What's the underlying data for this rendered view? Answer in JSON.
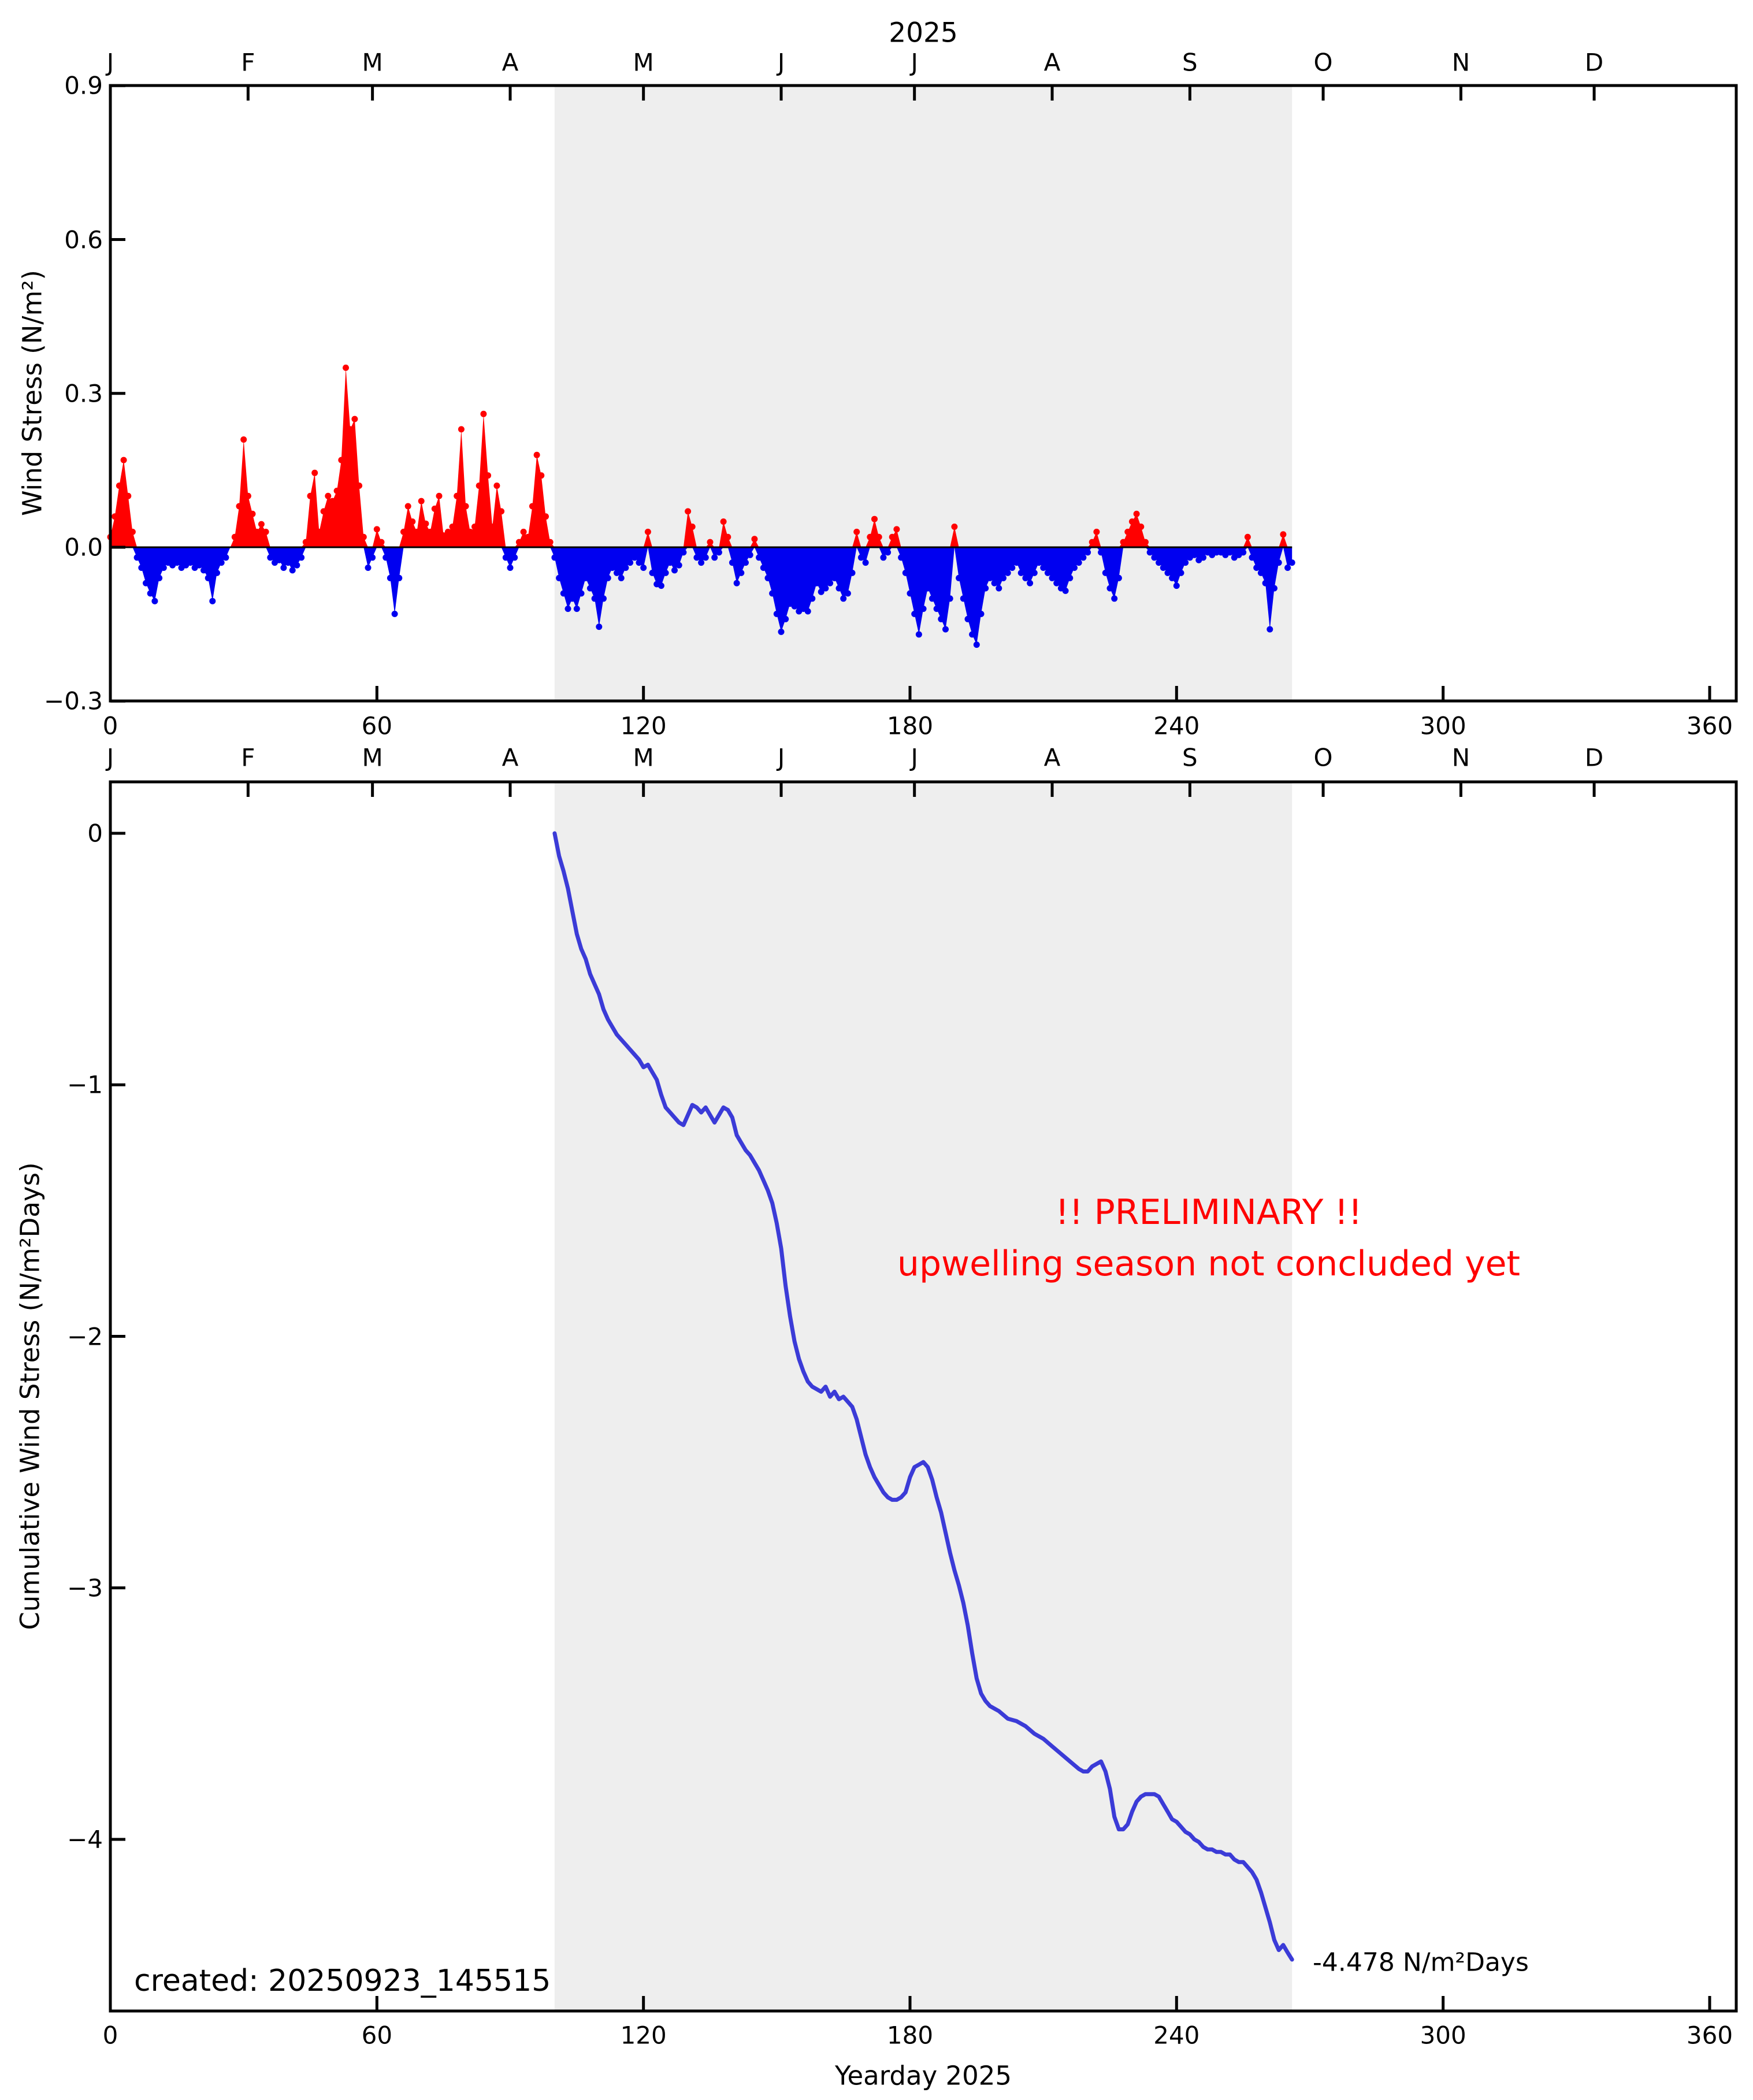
{
  "title": "2025",
  "xlabel": "Yearday 2025",
  "x_ticks": [
    0,
    60,
    120,
    180,
    240,
    300,
    360
  ],
  "x_tick_labels": [
    "0",
    "60",
    "120",
    "180",
    "240",
    "300",
    "360"
  ],
  "month_labels": [
    "J",
    "F",
    "M",
    "A",
    "M",
    "J",
    "J",
    "A",
    "S",
    "O",
    "N",
    "D"
  ],
  "month_start_days": [
    0,
    31,
    59,
    90,
    120,
    151,
    181,
    212,
    243,
    273,
    304,
    334
  ],
  "panel1": {
    "ylabel": "Wind Stress (N/m²)",
    "y_ticks": [
      0.9,
      0.6,
      0.3,
      0.0,
      -0.3
    ],
    "y_tick_labels": [
      "0.9",
      "0.6",
      "0.3",
      "0.0",
      "−0.3"
    ]
  },
  "panel2": {
    "ylabel": "Cumulative Wind Stress (N/m²Days)",
    "y_ticks": [
      0,
      -1,
      -2,
      -3,
      -4
    ],
    "y_tick_labels": [
      "0",
      "−1",
      "−2",
      "−3",
      "−4"
    ]
  },
  "annotations": {
    "preliminary_line1": "!! PRELIMINARY !!",
    "preliminary_line2": "upwelling season not concluded yet",
    "created": "created: 20250923_145515",
    "final_value": "-4.478 N/m²Days"
  },
  "colors": {
    "positive_fill": "#ff0000",
    "negative_fill": "#0000f0",
    "cumulative_line": "#3b3bd7",
    "shaded_region": "#eeeeee",
    "axis": "#000000",
    "annotation_red": "#ff0000"
  },
  "shaded_region_days": [
    100,
    266
  ],
  "chart_data": [
    {
      "type": "area",
      "panel": "top",
      "title": "2025",
      "ylabel": "Wind Stress (N/m²)",
      "xlim": [
        0,
        366
      ],
      "ylim": [
        -0.3,
        0.9
      ],
      "x_start_day": 0,
      "x_step_days": 1,
      "positive_color": "#ff0000",
      "negative_color": "#0000f0",
      "shaded_region": [
        100,
        266
      ],
      "values": [
        0.02,
        0.06,
        0.12,
        0.17,
        0.1,
        0.03,
        -0.02,
        -0.04,
        -0.07,
        -0.09,
        -0.105,
        -0.06,
        -0.04,
        -0.03,
        -0.035,
        -0.03,
        -0.04,
        -0.035,
        -0.03,
        -0.04,
        -0.035,
        -0.045,
        -0.06,
        -0.105,
        -0.05,
        -0.03,
        -0.02,
        0.0,
        0.02,
        0.08,
        0.21,
        0.1,
        0.065,
        0.03,
        0.045,
        0.03,
        -0.02,
        -0.03,
        -0.025,
        -0.04,
        -0.03,
        -0.045,
        -0.035,
        -0.02,
        0.01,
        0.1,
        0.145,
        0.03,
        0.07,
        0.1,
        0.09,
        0.11,
        0.17,
        0.35,
        0.23,
        0.25,
        0.12,
        0.02,
        -0.04,
        -0.02,
        0.035,
        0.01,
        -0.02,
        -0.06,
        -0.13,
        -0.06,
        0.03,
        0.08,
        0.05,
        0.03,
        0.09,
        0.046,
        0.03,
        0.075,
        0.1,
        0.023,
        0.03,
        0.04,
        0.1,
        0.23,
        0.08,
        0.03,
        0.04,
        0.12,
        0.26,
        0.14,
        0.04,
        0.12,
        0.07,
        -0.02,
        -0.04,
        -0.02,
        0.01,
        0.03,
        0.02,
        0.08,
        0.18,
        0.14,
        0.06,
        0.01,
        -0.02,
        -0.06,
        -0.09,
        -0.12,
        -0.1,
        -0.12,
        -0.09,
        -0.06,
        -0.08,
        -0.1,
        -0.155,
        -0.1,
        -0.06,
        -0.04,
        -0.05,
        -0.06,
        -0.04,
        -0.03,
        -0.02,
        -0.03,
        -0.04,
        0.03,
        -0.05,
        -0.072,
        -0.075,
        -0.05,
        -0.03,
        -0.045,
        -0.035,
        -0.01,
        0.07,
        0.04,
        -0.02,
        -0.03,
        -0.02,
        0.01,
        -0.02,
        -0.01,
        0.05,
        0.02,
        -0.03,
        -0.07,
        -0.05,
        -0.03,
        -0.015,
        0.016,
        -0.02,
        -0.04,
        -0.06,
        -0.09,
        -0.13,
        -0.165,
        -0.14,
        -0.11,
        -0.115,
        -0.125,
        -0.12,
        -0.125,
        -0.1,
        -0.07,
        -0.087,
        -0.08,
        -0.07,
        -0.06,
        -0.08,
        -0.1,
        -0.09,
        -0.05,
        0.03,
        -0.02,
        -0.03,
        0.02,
        0.055,
        0.02,
        -0.02,
        -0.01,
        0.02,
        0.035,
        -0.02,
        -0.05,
        -0.09,
        -0.13,
        -0.17,
        -0.12,
        -0.08,
        -0.1,
        -0.12,
        -0.14,
        -0.16,
        -0.1,
        0.04,
        -0.06,
        -0.1,
        -0.14,
        -0.17,
        -0.19,
        -0.13,
        -0.08,
        -0.06,
        -0.07,
        -0.08,
        -0.06,
        -0.05,
        -0.04,
        -0.03,
        -0.05,
        -0.06,
        -0.07,
        -0.05,
        -0.03,
        -0.04,
        -0.05,
        -0.06,
        -0.07,
        -0.08,
        -0.085,
        -0.06,
        -0.04,
        -0.03,
        -0.02,
        -0.01,
        0.01,
        0.03,
        -0.01,
        -0.05,
        -0.08,
        -0.1,
        -0.06,
        0.01,
        0.03,
        0.05,
        0.065,
        0.04,
        0.01,
        -0.01,
        -0.02,
        -0.03,
        -0.04,
        -0.05,
        -0.06,
        -0.075,
        -0.05,
        -0.03,
        -0.02,
        -0.015,
        -0.025,
        -0.02,
        -0.01,
        -0.015,
        -0.01,
        -0.01,
        -0.015,
        -0.01,
        -0.02,
        -0.015,
        -0.01,
        0.02,
        -0.02,
        -0.04,
        -0.05,
        -0.07,
        -0.16,
        -0.08,
        -0.03,
        0.025,
        -0.04,
        -0.03
      ]
    },
    {
      "type": "line",
      "panel": "bottom",
      "ylabel": "Cumulative Wind Stress (N/m²Days)",
      "xlabel": "Yearday 2025",
      "xlim": [
        0,
        366
      ],
      "ylim": [
        -4.683,
        0.204
      ],
      "line_color": "#3b3bd7",
      "shaded_region": [
        100,
        266
      ],
      "end_value": -4.478,
      "end_label": "-4.478 N/m²Days",
      "points": [
        [
          100,
          0.0
        ],
        [
          101,
          -0.09
        ],
        [
          102,
          -0.15
        ],
        [
          103,
          -0.22
        ],
        [
          104,
          -0.31
        ],
        [
          105,
          -0.4
        ],
        [
          106,
          -0.46
        ],
        [
          107,
          -0.5
        ],
        [
          108,
          -0.56
        ],
        [
          109,
          -0.6
        ],
        [
          110,
          -0.64
        ],
        [
          111,
          -0.7
        ],
        [
          112,
          -0.74
        ],
        [
          113,
          -0.77
        ],
        [
          114,
          -0.8
        ],
        [
          115,
          -0.82
        ],
        [
          116,
          -0.84
        ],
        [
          117,
          -0.86
        ],
        [
          118,
          -0.88
        ],
        [
          119,
          -0.9
        ],
        [
          120,
          -0.93
        ],
        [
          121,
          -0.92
        ],
        [
          122,
          -0.95
        ],
        [
          123,
          -0.98
        ],
        [
          124,
          -1.04
        ],
        [
          125,
          -1.09
        ],
        [
          126,
          -1.11
        ],
        [
          127,
          -1.13
        ],
        [
          128,
          -1.15
        ],
        [
          129,
          -1.16
        ],
        [
          130,
          -1.12
        ],
        [
          131,
          -1.08
        ],
        [
          132,
          -1.09
        ],
        [
          133,
          -1.11
        ],
        [
          134,
          -1.09
        ],
        [
          135,
          -1.12
        ],
        [
          136,
          -1.15
        ],
        [
          137,
          -1.12
        ],
        [
          138,
          -1.09
        ],
        [
          139,
          -1.1
        ],
        [
          140,
          -1.13
        ],
        [
          141,
          -1.2
        ],
        [
          142,
          -1.23
        ],
        [
          143,
          -1.26
        ],
        [
          144,
          -1.28
        ],
        [
          145,
          -1.31
        ],
        [
          146,
          -1.34
        ],
        [
          147,
          -1.38
        ],
        [
          148,
          -1.42
        ],
        [
          149,
          -1.47
        ],
        [
          150,
          -1.55
        ],
        [
          151,
          -1.65
        ],
        [
          152,
          -1.8
        ],
        [
          153,
          -1.92
        ],
        [
          154,
          -2.02
        ],
        [
          155,
          -2.09
        ],
        [
          156,
          -2.14
        ],
        [
          157,
          -2.18
        ],
        [
          158,
          -2.2
        ],
        [
          159,
          -2.21
        ],
        [
          160,
          -2.22
        ],
        [
          161,
          -2.2
        ],
        [
          162,
          -2.24
        ],
        [
          163,
          -2.22
        ],
        [
          164,
          -2.25
        ],
        [
          165,
          -2.24
        ],
        [
          166,
          -2.26
        ],
        [
          167,
          -2.28
        ],
        [
          168,
          -2.33
        ],
        [
          169,
          -2.4
        ],
        [
          170,
          -2.47
        ],
        [
          171,
          -2.52
        ],
        [
          172,
          -2.56
        ],
        [
          173,
          -2.59
        ],
        [
          174,
          -2.62
        ],
        [
          175,
          -2.64
        ],
        [
          176,
          -2.65
        ],
        [
          177,
          -2.65
        ],
        [
          178,
          -2.64
        ],
        [
          179,
          -2.62
        ],
        [
          180,
          -2.56
        ],
        [
          181,
          -2.52
        ],
        [
          182,
          -2.51
        ],
        [
          183,
          -2.5
        ],
        [
          184,
          -2.52
        ],
        [
          185,
          -2.57
        ],
        [
          186,
          -2.64
        ],
        [
          187,
          -2.7
        ],
        [
          188,
          -2.78
        ],
        [
          189,
          -2.86
        ],
        [
          190,
          -2.93
        ],
        [
          191,
          -2.99
        ],
        [
          192,
          -3.06
        ],
        [
          193,
          -3.15
        ],
        [
          194,
          -3.26
        ],
        [
          195,
          -3.36
        ],
        [
          196,
          -3.42
        ],
        [
          197,
          -3.45
        ],
        [
          198,
          -3.47
        ],
        [
          199,
          -3.48
        ],
        [
          200,
          -3.49
        ],
        [
          202,
          -3.52
        ],
        [
          204,
          -3.53
        ],
        [
          206,
          -3.55
        ],
        [
          208,
          -3.58
        ],
        [
          210,
          -3.6
        ],
        [
          212,
          -3.63
        ],
        [
          214,
          -3.66
        ],
        [
          216,
          -3.69
        ],
        [
          218,
          -3.72
        ],
        [
          219,
          -3.73
        ],
        [
          220,
          -3.73
        ],
        [
          221,
          -3.71
        ],
        [
          222,
          -3.7
        ],
        [
          223,
          -3.69
        ],
        [
          224,
          -3.73
        ],
        [
          225,
          -3.8
        ],
        [
          226,
          -3.91
        ],
        [
          227,
          -3.96
        ],
        [
          228,
          -3.96
        ],
        [
          229,
          -3.94
        ],
        [
          230,
          -3.89
        ],
        [
          231,
          -3.85
        ],
        [
          232,
          -3.83
        ],
        [
          233,
          -3.82
        ],
        [
          234,
          -3.82
        ],
        [
          235,
          -3.82
        ],
        [
          236,
          -3.83
        ],
        [
          237,
          -3.86
        ],
        [
          238,
          -3.89
        ],
        [
          239,
          -3.92
        ],
        [
          240,
          -3.93
        ],
        [
          241,
          -3.95
        ],
        [
          242,
          -3.97
        ],
        [
          243,
          -3.98
        ],
        [
          244,
          -4.0
        ],
        [
          245,
          -4.01
        ],
        [
          246,
          -4.03
        ],
        [
          247,
          -4.04
        ],
        [
          248,
          -4.04
        ],
        [
          249,
          -4.05
        ],
        [
          250,
          -4.05
        ],
        [
          251,
          -4.06
        ],
        [
          252,
          -4.06
        ],
        [
          253,
          -4.08
        ],
        [
          254,
          -4.09
        ],
        [
          255,
          -4.09
        ],
        [
          256,
          -4.11
        ],
        [
          257,
          -4.13
        ],
        [
          258,
          -4.16
        ],
        [
          259,
          -4.21
        ],
        [
          260,
          -4.27
        ],
        [
          261,
          -4.33
        ],
        [
          262,
          -4.4
        ],
        [
          263,
          -4.44
        ],
        [
          264,
          -4.42
        ],
        [
          265,
          -4.45
        ],
        [
          266,
          -4.478
        ]
      ]
    }
  ]
}
